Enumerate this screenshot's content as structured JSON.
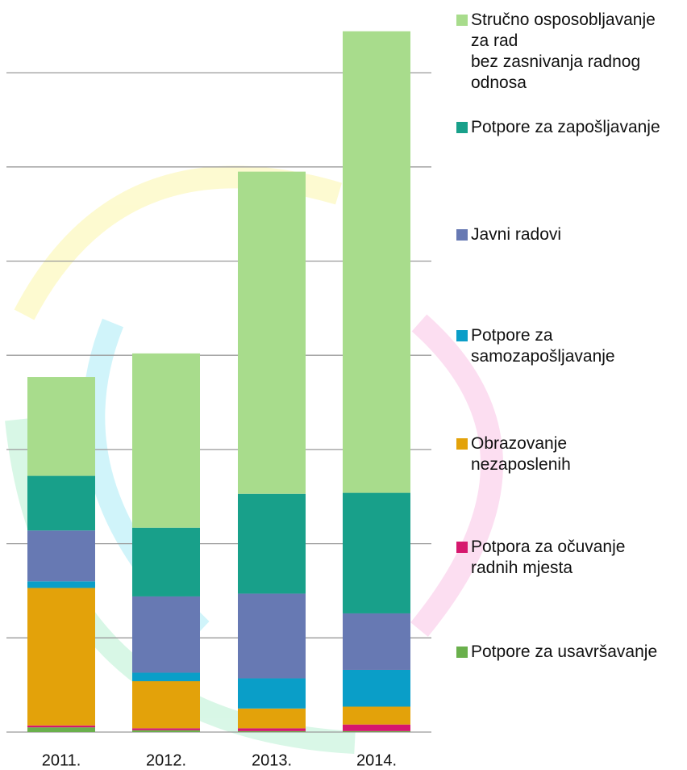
{
  "chart_data": {
    "type": "stacked_bar",
    "categories": [
      "2011.",
      "2012.",
      "2013.",
      "2014."
    ],
    "series": [
      {
        "name": "Potpore za usavršavanje",
        "color": "#6ab04c",
        "values": [
          0.05,
          0.02,
          0.01,
          0.01
        ]
      },
      {
        "name": "Potpora za očuvanje\nradnih mjesta",
        "color": "#d6186e",
        "values": [
          0.02,
          0.02,
          0.03,
          0.07
        ]
      },
      {
        "name": "Obrazovanje\nnezaposlenih",
        "color": "#e3a20a",
        "values": [
          1.46,
          0.5,
          0.21,
          0.19
        ]
      },
      {
        "name": "Potpore za\nsamozapošljavanje",
        "color": "#0a9ec8",
        "values": [
          0.07,
          0.09,
          0.32,
          0.39
        ]
      },
      {
        "name": "Javni radovi",
        "color": "#6779b3",
        "values": [
          0.54,
          0.81,
          0.9,
          0.6
        ]
      },
      {
        "name": "Potpore za zapošljavanje",
        "color": "#18a08a",
        "values": [
          0.58,
          0.73,
          1.06,
          1.28
        ]
      },
      {
        "name": "Stručno osposobljavanje\nza rad\nbez zasnivanja radnog\nodnosa",
        "color": "#a8dc8c",
        "values": [
          1.05,
          1.85,
          3.42,
          4.9
        ]
      }
    ],
    "ylim": [
      0,
      7.5
    ],
    "yticks": [
      0,
      1,
      2,
      3,
      4,
      5,
      6,
      7
    ],
    "grid": true
  }
}
